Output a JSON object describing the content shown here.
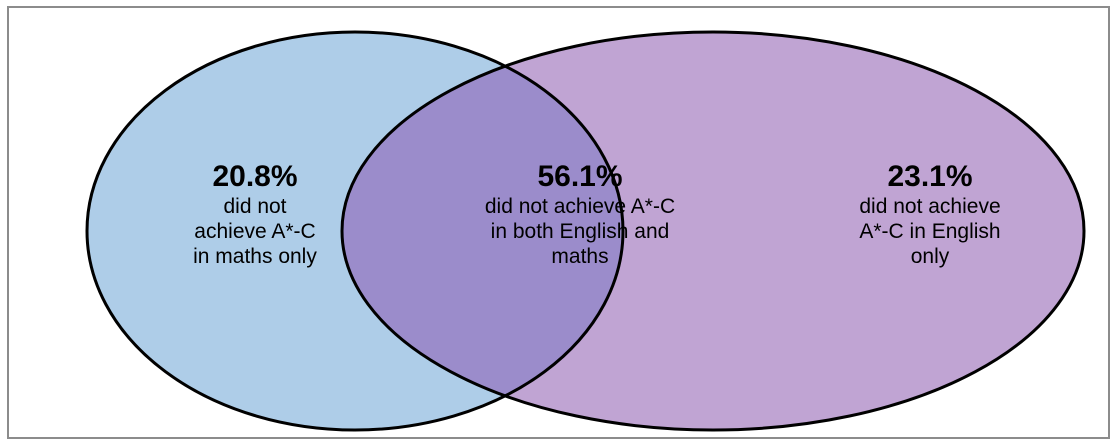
{
  "diagram": {
    "colors": {
      "maths_circle": "#aecde8",
      "english_circle": "#c0a4d3",
      "overlap": "#9b8ccb",
      "outline": "#000000"
    },
    "maths_only": {
      "percent": "20.8%",
      "line1": "did not",
      "line2": "achieve A*-C",
      "line3": "in maths only"
    },
    "both": {
      "percent": "56.1%",
      "line1": "did not achieve A*-C",
      "line2": "in both English and",
      "line3": "maths"
    },
    "english_only": {
      "percent": "23.1%",
      "line1": "did not achieve",
      "line2": "A*-C in English",
      "line3": "only"
    }
  }
}
